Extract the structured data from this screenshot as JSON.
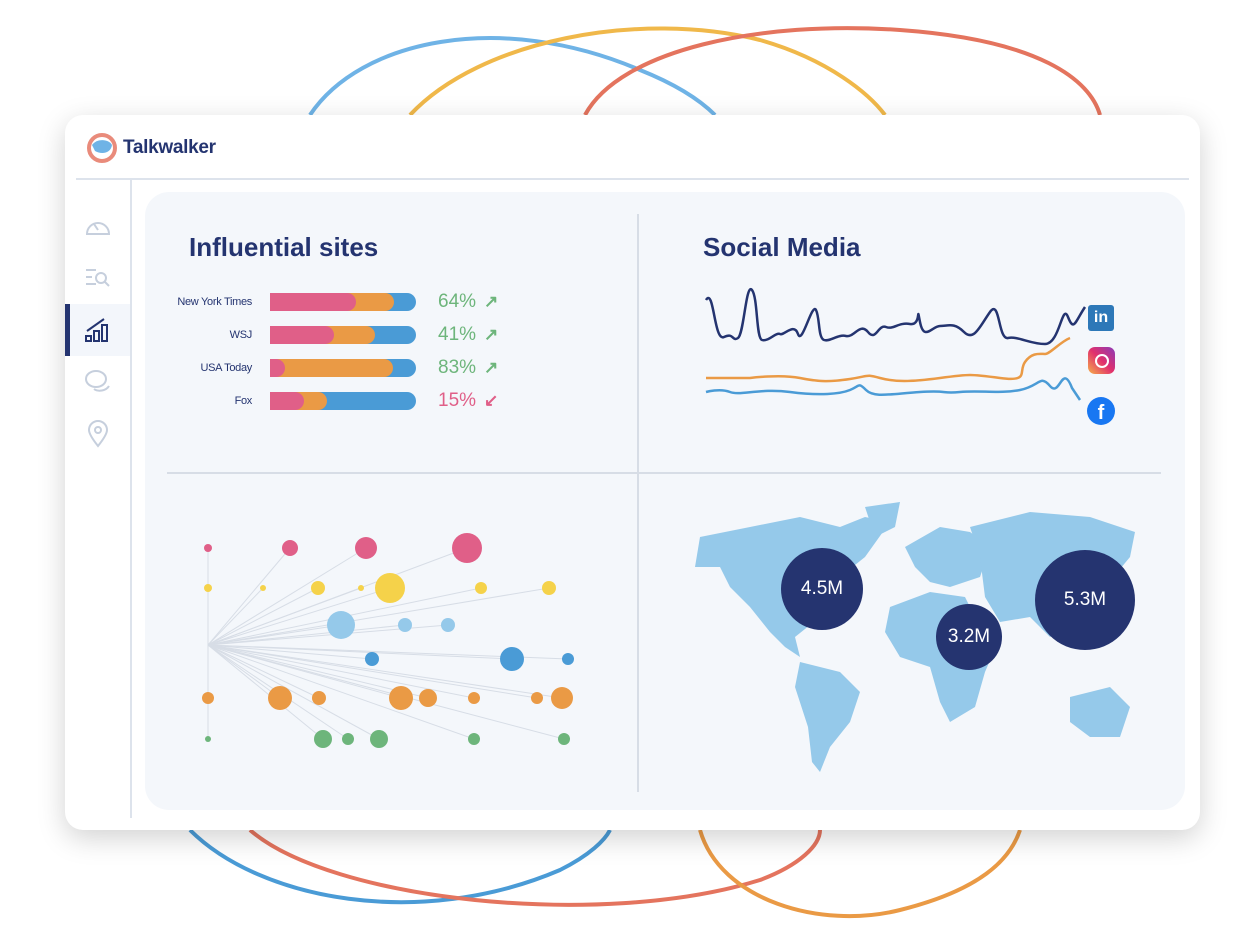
{
  "app": {
    "name": "Talkwalker"
  },
  "nav": [
    {
      "icon": "dashboard-gauge-icon"
    },
    {
      "icon": "search-list-icon"
    },
    {
      "icon": "analytics-chart-icon",
      "active": true
    },
    {
      "icon": "chat-bubbles-icon"
    },
    {
      "icon": "location-pin-icon"
    }
  ],
  "influential": {
    "title": "Influential sites",
    "colors": {
      "pink": "#e05f88",
      "orange": "#ea9a45",
      "blue": "#4a9bd6",
      "up": "#6db57b",
      "down": "#e05f88"
    },
    "rows": [
      {
        "site": "New York Times",
        "pink": 59,
        "orange": 85,
        "pct": "64%",
        "trend": "up"
      },
      {
        "site": "WSJ",
        "pink": 44,
        "orange": 72,
        "pct": "41%",
        "trend": "up"
      },
      {
        "site": "USA Today",
        "pink": 10,
        "orange": 84,
        "pct": "83%",
        "trend": "up"
      },
      {
        "site": "Fox",
        "pink": 23,
        "orange": 39,
        "pct": "15%",
        "trend": "down"
      }
    ]
  },
  "social": {
    "title": "Social Media",
    "networks": [
      "LinkedIn",
      "Instagram",
      "Facebook"
    ],
    "colors": {
      "linkedin": "#243470",
      "instagram": "#ea9a45",
      "facebook": "#4a9bd6"
    }
  },
  "map": {
    "bubbles": [
      {
        "label": "4.5M"
      },
      {
        "label": "3.2M"
      },
      {
        "label": "5.3M"
      }
    ],
    "land_color": "#95c9ea",
    "bubble_color": "#253470"
  }
}
